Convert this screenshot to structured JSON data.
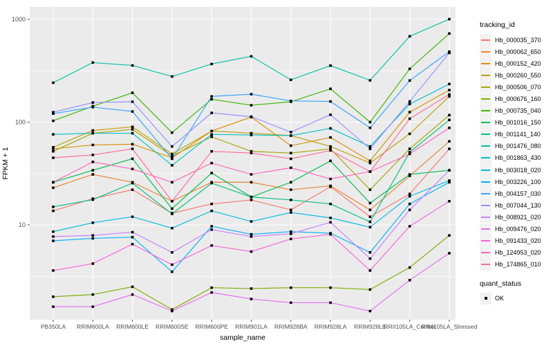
{
  "figure": {
    "xlabel": "sample_name",
    "ylabel": "FPKM + 1",
    "colors": {
      "panel_bg": "#EBEBEB",
      "grid_major": "#FFFFFF",
      "grid_minor": "#FFFFFF",
      "tick": "#333333",
      "tick_label": "#4D4D4D",
      "marker": "#000000",
      "legend_key_bg": "#F2F2F2"
    }
  },
  "chart_data": {
    "type": "line",
    "title": "",
    "xlabel": "sample_name",
    "ylabel": "FPKM + 1",
    "y_scale": "log10",
    "grid": true,
    "legend_position": "right",
    "marker": "black-square",
    "ylim": [
      1.19,
      1320
    ],
    "y_ticks": [
      10,
      100,
      1000
    ],
    "y_minor_ticks": [
      3.16,
      31.6,
      316
    ],
    "categories": [
      "PB350LA",
      "RRIM600LA",
      "RRIM600LE",
      "RRIM600SE",
      "RRIM600PE",
      "RRIM901LA",
      "RRIM928BA",
      "RRIM928LA",
      "RRIM928LE",
      "RRII105LA_Control",
      "RRII105LA_Stressed"
    ],
    "legend": {
      "tracking_title": "tracking_id",
      "quant_title": "quant_status",
      "quant_items": [
        {
          "label": "OK",
          "marker": "black-square"
        }
      ]
    },
    "series": [
      {
        "name": "Hb_000035_370",
        "color": "#F8766D",
        "values": [
          13.7,
          18,
          22,
          13,
          16,
          17.5,
          14,
          23.5,
          12,
          20,
          55
        ]
      },
      {
        "name": "Hb_000062_650",
        "color": "#EA8331",
        "values": [
          23,
          31,
          26,
          17,
          26,
          26,
          22,
          24,
          14,
          30,
          65
        ]
      },
      {
        "name": "Hb_000152_420",
        "color": "#D89000",
        "values": [
          55,
          60,
          61,
          45,
          82,
          112,
          59,
          71,
          42,
          125,
          205
        ]
      },
      {
        "name": "Hb_000260_550",
        "color": "#C09B00",
        "values": [
          57,
          83,
          90,
          49,
          82,
          78,
          74,
          58,
          40,
          77,
          178
        ]
      },
      {
        "name": "Hb_000506_070",
        "color": "#A3A500",
        "values": [
          52,
          78,
          85,
          47,
          72,
          52,
          50,
          55,
          22,
          55,
          117
        ]
      },
      {
        "name": "Hb_000676_160",
        "color": "#7CAE00",
        "values": [
          2.0,
          2.1,
          2.5,
          1.5,
          2.45,
          2.4,
          2.45,
          2.45,
          2.35,
          3.85,
          7.9
        ]
      },
      {
        "name": "Hb_000735_040",
        "color": "#39B600",
        "values": [
          103,
          143,
          193,
          79,
          167,
          146,
          158,
          211,
          100,
          330,
          728
        ]
      },
      {
        "name": "Hb_001016_150",
        "color": "#00BB4E",
        "values": [
          26,
          34,
          44,
          14.4,
          32,
          18.7,
          26,
          42,
          16.3,
          31,
          34
        ]
      },
      {
        "name": "Hb_001141_140",
        "color": "#00BF7D",
        "values": [
          15,
          17.6,
          25.5,
          12.8,
          25.5,
          18.7,
          17.5,
          16,
          10.7,
          51,
          105
        ]
      },
      {
        "name": "Hb_001476_080",
        "color": "#00C1A3",
        "values": [
          242,
          380,
          356,
          278,
          368,
          437,
          258,
          355,
          255,
          684,
          1005
        ]
      },
      {
        "name": "Hb_001863_430",
        "color": "#00BFC4",
        "values": [
          76,
          78,
          78,
          38,
          76,
          75,
          74,
          87,
          58,
          150,
          235
        ]
      },
      {
        "name": "Hb_003018_020",
        "color": "#00BAE0",
        "values": [
          8.6,
          10.5,
          12,
          9.3,
          13.7,
          10.8,
          13.2,
          11.7,
          9.5,
          19,
          27
        ]
      },
      {
        "name": "Hb_003226_100",
        "color": "#00B0F6",
        "values": [
          7.0,
          7.4,
          7.6,
          3.5,
          9.7,
          8.1,
          8.6,
          8.3,
          5.4,
          16,
          26
        ]
      },
      {
        "name": "Hb_004157_030",
        "color": "#35A2FF",
        "values": [
          121,
          140,
          127,
          44,
          178,
          187,
          161,
          159,
          88,
          254,
          485
        ]
      },
      {
        "name": "Hb_007044_130",
        "color": "#9590FF",
        "values": [
          125,
          155,
          158,
          58,
          123,
          113,
          80,
          118,
          55,
          159,
          472
        ]
      },
      {
        "name": "Hb_008921_020",
        "color": "#C77CFF",
        "values": [
          7.7,
          7.9,
          8.5,
          5.4,
          9.0,
          7.7,
          8.2,
          10.6,
          4.7,
          14,
          34
        ]
      },
      {
        "name": "Hb_009476_020",
        "color": "#E76BF3",
        "values": [
          1.6,
          1.6,
          2.1,
          1.45,
          2.2,
          1.9,
          1.75,
          1.75,
          1.45,
          2.9,
          5.3
        ]
      },
      {
        "name": "Hb_091433_020",
        "color": "#FA62DB",
        "values": [
          3.6,
          4.2,
          6.5,
          4.1,
          6.3,
          5.5,
          7.3,
          8.1,
          3.6,
          9.7,
          17
        ]
      },
      {
        "name": "Hb_124953_020",
        "color": "#FF62BC",
        "values": [
          26,
          41,
          35,
          26,
          40,
          31,
          36,
          28,
          33,
          49,
          88
        ]
      },
      {
        "name": "Hb_174865_010",
        "color": "#FF6A98",
        "values": [
          45,
          48,
          55,
          17,
          52,
          50,
          44,
          53,
          33,
          108,
          186
        ]
      }
    ]
  }
}
